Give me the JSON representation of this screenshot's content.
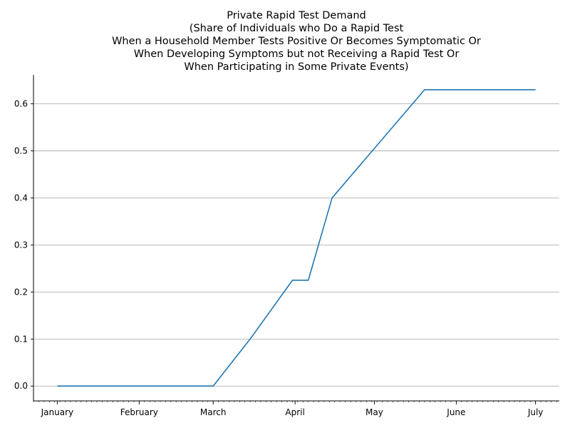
{
  "chart_data": {
    "type": "line",
    "title_lines": [
      "Private Rapid Test Demand",
      "(Share of Individuals who Do a Rapid Test",
      "When a Household Member Tests Positive Or Becomes Symptomatic Or",
      "When Developing Symptoms but not Receiving a Rapid Test Or",
      "When Participating in Some Private Events)"
    ],
    "xlabel": "",
    "ylabel": "",
    "x_ticks": [
      {
        "label": "January",
        "date": "2021-01-01"
      },
      {
        "label": "February",
        "date": "2021-02-01"
      },
      {
        "label": "March",
        "date": "2021-03-01"
      },
      {
        "label": "April",
        "date": "2021-04-01"
      },
      {
        "label": "May",
        "date": "2021-05-01"
      },
      {
        "label": "June",
        "date": "2021-06-01"
      },
      {
        "label": "July",
        "date": "2021-07-01"
      }
    ],
    "x_range": [
      "2020-12-23",
      "2021-07-10"
    ],
    "y_ticks": [
      "0.0",
      "0.1",
      "0.2",
      "0.3",
      "0.4",
      "0.5",
      "0.6"
    ],
    "ylim": [
      -0.0315,
      0.6615
    ],
    "grid": "horizontal",
    "series": [
      {
        "color": "#1f77b4",
        "points": [
          {
            "x": "2021-01-01",
            "y": 0.0
          },
          {
            "x": "2021-03-01",
            "y": 0.0
          },
          {
            "x": "2021-03-15",
            "y": 0.1
          },
          {
            "x": "2021-03-31",
            "y": 0.225
          },
          {
            "x": "2021-04-06",
            "y": 0.225
          },
          {
            "x": "2021-04-15",
            "y": 0.4
          },
          {
            "x": "2021-05-20",
            "y": 0.63
          },
          {
            "x": "2021-07-01",
            "y": 0.63
          }
        ]
      }
    ]
  }
}
